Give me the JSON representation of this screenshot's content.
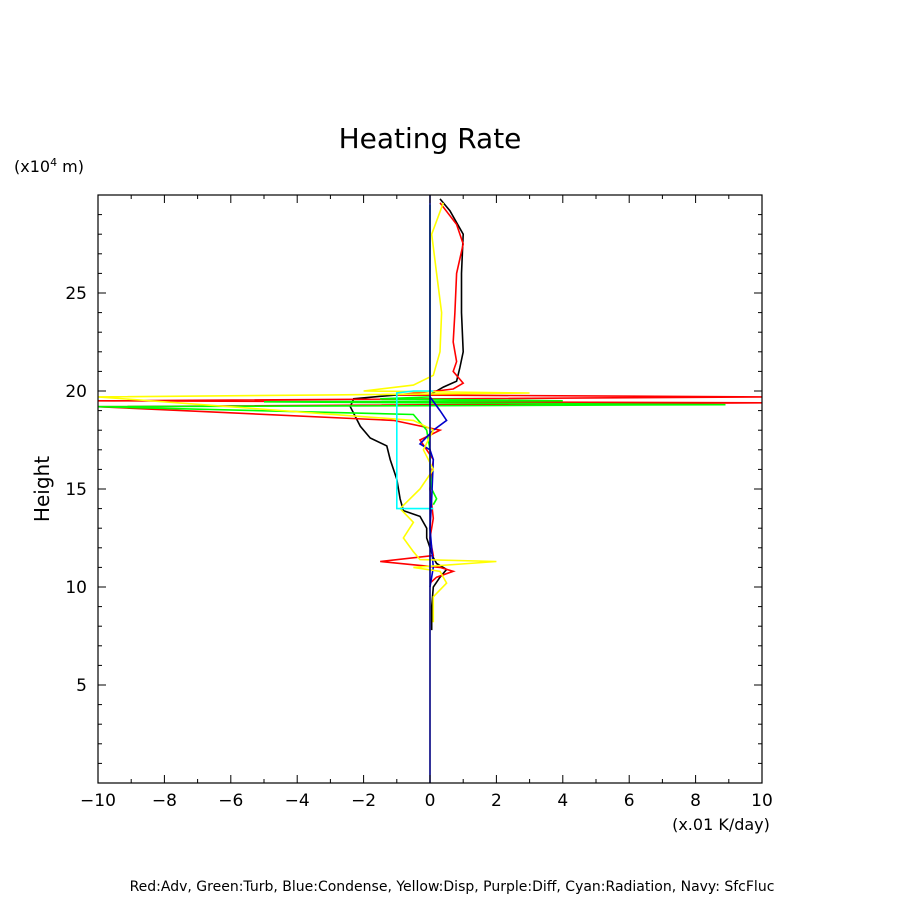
{
  "chart_data": {
    "type": "line",
    "title": "Heating Rate",
    "xlabel": "",
    "ylabel": "Height",
    "x_unit": "(x.01 K/day)",
    "y_unit_prefix": "(x10",
    "y_unit_exp": "4",
    "y_unit_suffix": " m)",
    "xlim": [
      -10,
      10
    ],
    "ylim": [
      0,
      30
    ],
    "xticks": [
      -10,
      -8,
      -6,
      -4,
      -2,
      0,
      2,
      4,
      6,
      8,
      10
    ],
    "yticks": [
      5,
      10,
      15,
      20,
      25
    ],
    "grid": false,
    "legend_text": "Red:Adv, Green:Turb, Blue:Condense, Yellow:Disp, Purple:Diff, Cyan:Radiation, Navy: SfcFluc",
    "series": [
      {
        "color": "#000000",
        "points": [
          [
            0.05,
            7.8
          ],
          [
            0.05,
            9
          ],
          [
            0.1,
            10
          ],
          [
            0.3,
            10.5
          ],
          [
            0.5,
            10.9
          ],
          [
            0.2,
            11.2
          ],
          [
            0.1,
            11.5
          ],
          [
            0,
            12
          ],
          [
            -0.1,
            12.5
          ],
          [
            -0.1,
            13
          ],
          [
            -0.3,
            13.6
          ],
          [
            -0.8,
            13.9
          ],
          [
            -0.9,
            14.5
          ],
          [
            -1.0,
            15.5
          ],
          [
            -1.2,
            16.5
          ],
          [
            -1.3,
            17.2
          ],
          [
            -1.8,
            17.6
          ],
          [
            -2.1,
            18.2
          ],
          [
            -2.4,
            19.2
          ],
          [
            -2.3,
            19.6
          ],
          [
            -1.0,
            19.8
          ],
          [
            0,
            19.8
          ],
          [
            0.4,
            20.2
          ],
          [
            0.8,
            20.5
          ],
          [
            0.9,
            21.2
          ],
          [
            1.0,
            22
          ],
          [
            0.95,
            24
          ],
          [
            0.95,
            26
          ],
          [
            1.0,
            28
          ],
          [
            0.6,
            29.2
          ],
          [
            0.3,
            29.8
          ]
        ]
      },
      {
        "color": "#ff0000",
        "points": [
          [
            0,
            10.2
          ],
          [
            0.2,
            10.5
          ],
          [
            0.7,
            10.8
          ],
          [
            0.3,
            11.0
          ],
          [
            -1.5,
            11.3
          ],
          [
            0.1,
            11.6
          ],
          [
            0,
            12.5
          ],
          [
            0.1,
            13.5
          ],
          [
            0,
            15
          ],
          [
            0.1,
            16.5
          ],
          [
            -0.3,
            17.5
          ],
          [
            0.3,
            18
          ],
          [
            -1.1,
            18.5
          ],
          [
            -10,
            19.2
          ],
          [
            10,
            19.4
          ],
          [
            -10,
            19.5
          ],
          [
            10,
            19.7
          ],
          [
            -1.0,
            19.8
          ],
          [
            0.2,
            20
          ],
          [
            0.7,
            20.1
          ],
          [
            1.0,
            20.4
          ],
          [
            0.7,
            21
          ],
          [
            0.8,
            21.5
          ],
          [
            0.7,
            22.5
          ],
          [
            0.75,
            24
          ],
          [
            0.8,
            26
          ],
          [
            1.0,
            27.5
          ],
          [
            0.8,
            28.5
          ],
          [
            0.3,
            29.6
          ]
        ]
      },
      {
        "color": "#00ff00",
        "points": [
          [
            0.1,
            14.2
          ],
          [
            0.2,
            14.5
          ],
          [
            0.05,
            15
          ],
          [
            0,
            16
          ],
          [
            0,
            17
          ],
          [
            -0.1,
            18
          ],
          [
            -0.5,
            18.8
          ],
          [
            -10,
            19.2
          ],
          [
            8.9,
            19.3
          ],
          [
            -5,
            19.45
          ],
          [
            4,
            19.5
          ],
          [
            -1.5,
            19.6
          ],
          [
            0,
            19.7
          ],
          [
            0,
            29.5
          ]
        ]
      },
      {
        "color": "#0000cc",
        "points": [
          [
            0,
            10
          ],
          [
            0.1,
            11
          ],
          [
            0,
            13
          ],
          [
            0.05,
            14.5
          ],
          [
            0.1,
            16.5
          ],
          [
            0,
            17
          ],
          [
            -0.3,
            17.3
          ],
          [
            0.1,
            18
          ],
          [
            0.5,
            18.5
          ],
          [
            0.3,
            19
          ],
          [
            0,
            19.7
          ]
        ]
      },
      {
        "color": "#ffff00",
        "points": [
          [
            0.1,
            8.2
          ],
          [
            0.1,
            9.5
          ],
          [
            0.5,
            10.2
          ],
          [
            0.3,
            10.8
          ],
          [
            -0.5,
            11
          ],
          [
            2.0,
            11.3
          ],
          [
            -0.3,
            11.4
          ],
          [
            -0.5,
            11.8
          ],
          [
            -0.8,
            12.5
          ],
          [
            -0.5,
            13.3
          ],
          [
            -0.9,
            14
          ],
          [
            -0.3,
            15
          ],
          [
            0.1,
            16
          ],
          [
            -0.2,
            17
          ],
          [
            0.1,
            18
          ],
          [
            -0.5,
            18.5
          ],
          [
            -10,
            19.7
          ],
          [
            -3,
            19.8
          ],
          [
            3,
            19.9
          ],
          [
            -2,
            20
          ],
          [
            -0.5,
            20.3
          ],
          [
            0.1,
            20.8
          ],
          [
            0.3,
            22
          ],
          [
            0.35,
            24
          ],
          [
            0.2,
            26
          ],
          [
            0.05,
            28
          ],
          [
            0.4,
            29.6
          ]
        ]
      },
      {
        "color": "#00ffff",
        "points": [
          [
            0.1,
            14
          ],
          [
            -1.0,
            14
          ],
          [
            -1.0,
            19.9
          ],
          [
            -0.5,
            20.0
          ],
          [
            0.1,
            20.0
          ]
        ]
      },
      {
        "color": "#000080",
        "points": [
          [
            0,
            0
          ],
          [
            0,
            30
          ]
        ]
      }
    ]
  }
}
